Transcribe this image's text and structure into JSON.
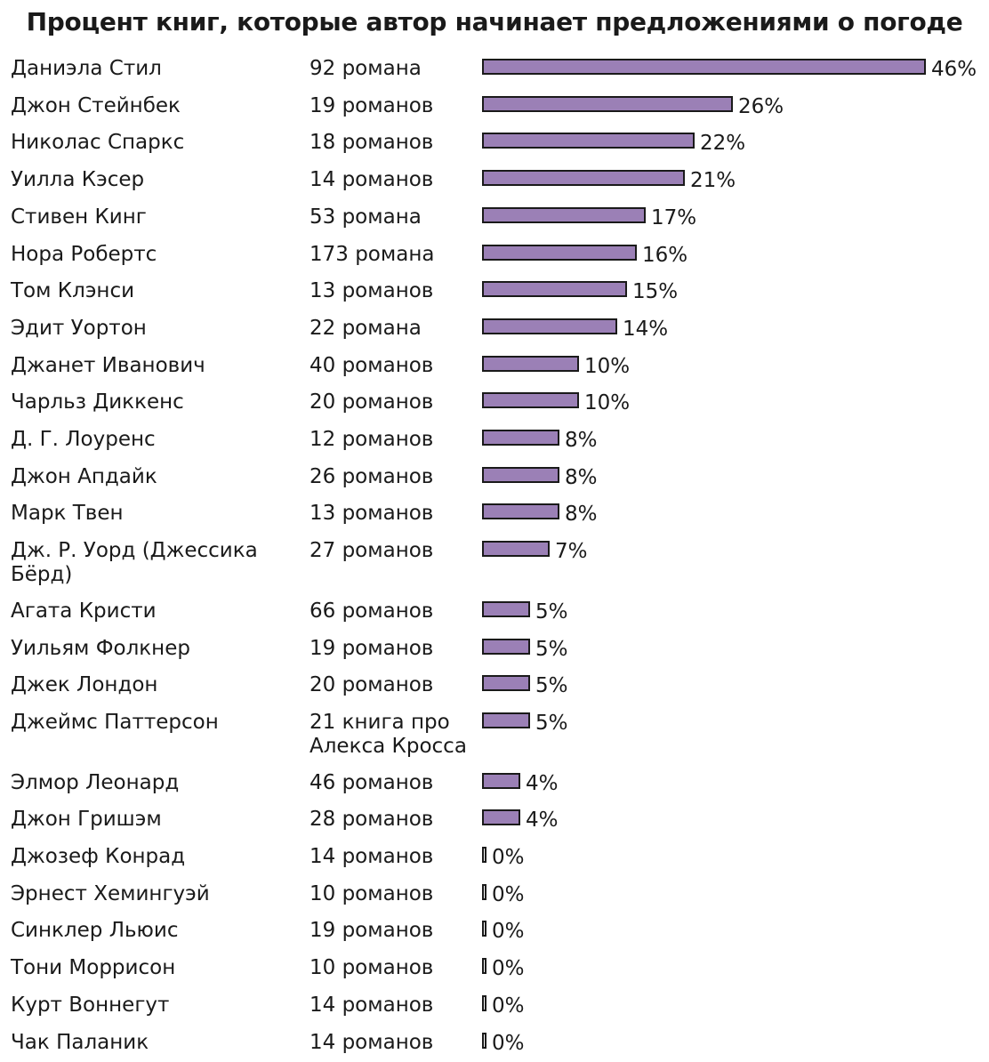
{
  "chart_data": {
    "type": "bar",
    "title": "Процент книг, которые автор начинает предложениями о погоде",
    "bar_color": "#9b80b6",
    "unit": "%",
    "rows": [
      {
        "author": "Даниэла Стил",
        "books": "92 романа",
        "value": 46,
        "label": "46%"
      },
      {
        "author": "Джон Стейнбек",
        "books": "19 романов",
        "value": 26,
        "label": "26%"
      },
      {
        "author": "Николас Спаркс",
        "books": "18 романов",
        "value": 22,
        "label": "22%"
      },
      {
        "author": "Уилла Кэсер",
        "books": "14 романов",
        "value": 21,
        "label": "21%"
      },
      {
        "author": "Стивен Кинг",
        "books": "53 романа",
        "value": 17,
        "label": "17%"
      },
      {
        "author": "Нора Робертс",
        "books": "173 романа",
        "value": 16,
        "label": "16%"
      },
      {
        "author": "Том Клэнси",
        "books": "13 романов",
        "value": 15,
        "label": "15%"
      },
      {
        "author": "Эдит Уортон",
        "books": "22 романа",
        "value": 14,
        "label": "14%"
      },
      {
        "author": "Джанет Иванович",
        "books": "40 романов",
        "value": 10,
        "label": "10%"
      },
      {
        "author": "Чарльз Диккенс",
        "books": "20 романов",
        "value": 10,
        "label": "10%"
      },
      {
        "author": "Д. Г. Лоуренс",
        "books": "12 романов",
        "value": 8,
        "label": "8%"
      },
      {
        "author": "Джон Апдайк",
        "books": "26 романов",
        "value": 8,
        "label": "8%"
      },
      {
        "author": "Марк Твен",
        "books": "13 романов",
        "value": 8,
        "label": "8%"
      },
      {
        "author": "Дж. Р. Уорд (Джессика Бёрд)",
        "books": "27 романов",
        "value": 7,
        "label": "7%"
      },
      {
        "author": "Агата Кристи",
        "books": "66 романов",
        "value": 5,
        "label": "5%"
      },
      {
        "author": "Уильям Фолкнер",
        "books": "19 романов",
        "value": 5,
        "label": "5%"
      },
      {
        "author": "Джек Лондон",
        "books": "20 романов",
        "value": 5,
        "label": "5%"
      },
      {
        "author": "Джеймс Паттерсон",
        "books": "21 книга про Алекса Кросса",
        "value": 5,
        "label": "5%"
      },
      {
        "author": "Элмор Леонард",
        "books": "46 романов",
        "value": 4,
        "label": "4%"
      },
      {
        "author": "Джон Гришэм",
        "books": "28 романов",
        "value": 4,
        "label": "4%"
      },
      {
        "author": "Джозеф Конрад",
        "books": "14 романов",
        "value": 0,
        "label": "0%"
      },
      {
        "author": "Эрнест Хемингуэй",
        "books": "10 романов",
        "value": 0,
        "label": "0%"
      },
      {
        "author": "Синклер Льюис",
        "books": "19 романов",
        "value": 0,
        "label": "0%"
      },
      {
        "author": "Тони Моррисон",
        "books": "10 романов",
        "value": 0,
        "label": "0%"
      },
      {
        "author": "Курт Воннегут",
        "books": "14 романов",
        "value": 0,
        "label": "0%"
      },
      {
        "author": "Чак Паланик",
        "books": "14 романов",
        "value": 0,
        "label": "0%"
      }
    ]
  }
}
